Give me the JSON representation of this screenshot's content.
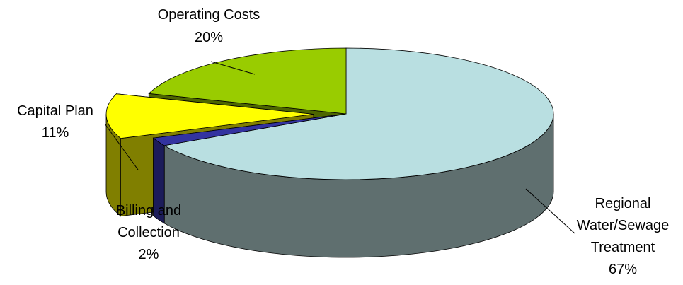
{
  "chart_data": {
    "type": "pie",
    "title": "",
    "three_d": true,
    "slices": [
      {
        "label_lines": [
          "Regional",
          "Water/Sewage",
          "Treatment"
        ],
        "pct_label": "67%",
        "value": 67,
        "color": "#B9DFE1",
        "side_color": "#5F6F6F",
        "exploded": false
      },
      {
        "label_lines": [
          "Billing and",
          "Collection"
        ],
        "pct_label": "2%",
        "value": 2,
        "color": "#3333A0",
        "side_color": "#1C1C5A",
        "exploded": false
      },
      {
        "label_lines": [
          "Capital Plan"
        ],
        "pct_label": "11%",
        "value": 11,
        "color": "#FFFF00",
        "side_color": "#807F00",
        "exploded": true
      },
      {
        "label_lines": [
          "Operating Costs"
        ],
        "pct_label": "20%",
        "value": 20,
        "color": "#99CC00",
        "side_color": "#4D6600",
        "exploded": false
      }
    ]
  }
}
